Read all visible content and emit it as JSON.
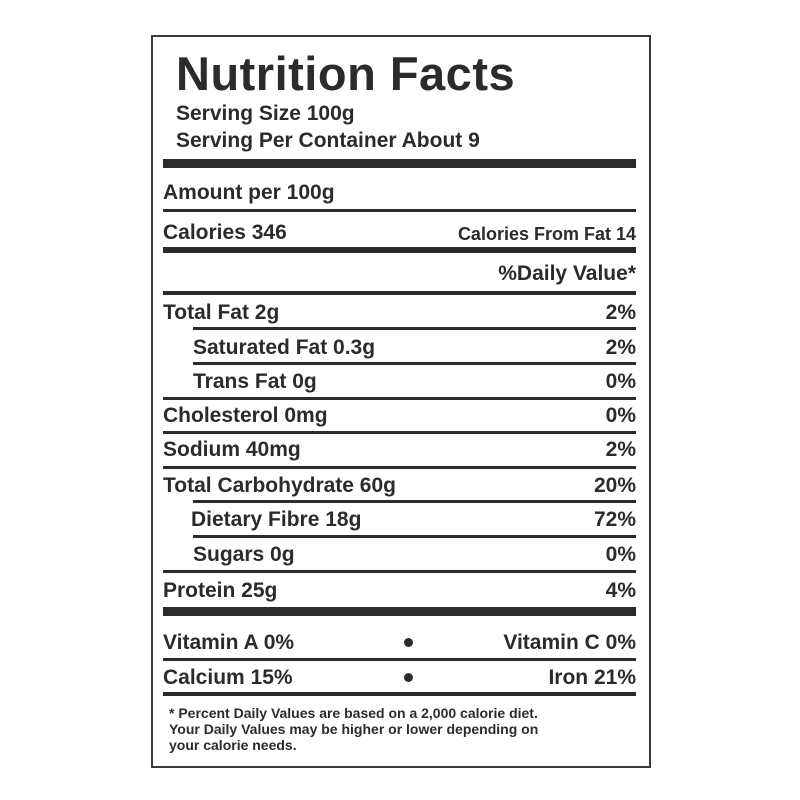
{
  "title": "Nutrition Facts",
  "serving": [
    "Serving Size 100g",
    "Serving Per Container About 9"
  ],
  "amount_per": "Amount per 100g",
  "calories": {
    "label": "Calories 346",
    "from_fat": "Calories From Fat 14"
  },
  "daily_value_header": "%Daily Value*",
  "nutrients": [
    {
      "name": "Total Fat 2g",
      "dv": "2%"
    },
    {
      "name": "Saturated Fat 0.3g",
      "dv": "2%"
    },
    {
      "name": "Trans Fat 0g",
      "dv": "0%"
    },
    {
      "name": "Cholesterol 0mg",
      "dv": "0%"
    },
    {
      "name": "Sodium 40mg",
      "dv": "2%"
    },
    {
      "name": "Total Carbohydrate 60g",
      "dv": "20%"
    },
    {
      "name": "Dietary Fibre 18g",
      "dv": "72%"
    },
    {
      "name": "Sugars 0g",
      "dv": "0%"
    },
    {
      "name": "Protein 25g",
      "dv": "4%"
    }
  ],
  "vitamins": [
    [
      "Vitamin A 0%",
      "Vitamin C 0%"
    ],
    [
      "Calcium 15%",
      "Iron 21%"
    ]
  ],
  "footnote": [
    "* Percent Daily Values are based on a 2,000 calorie diet.",
    "Your Daily Values may be higher or lower depending on",
    "your calorie needs."
  ]
}
